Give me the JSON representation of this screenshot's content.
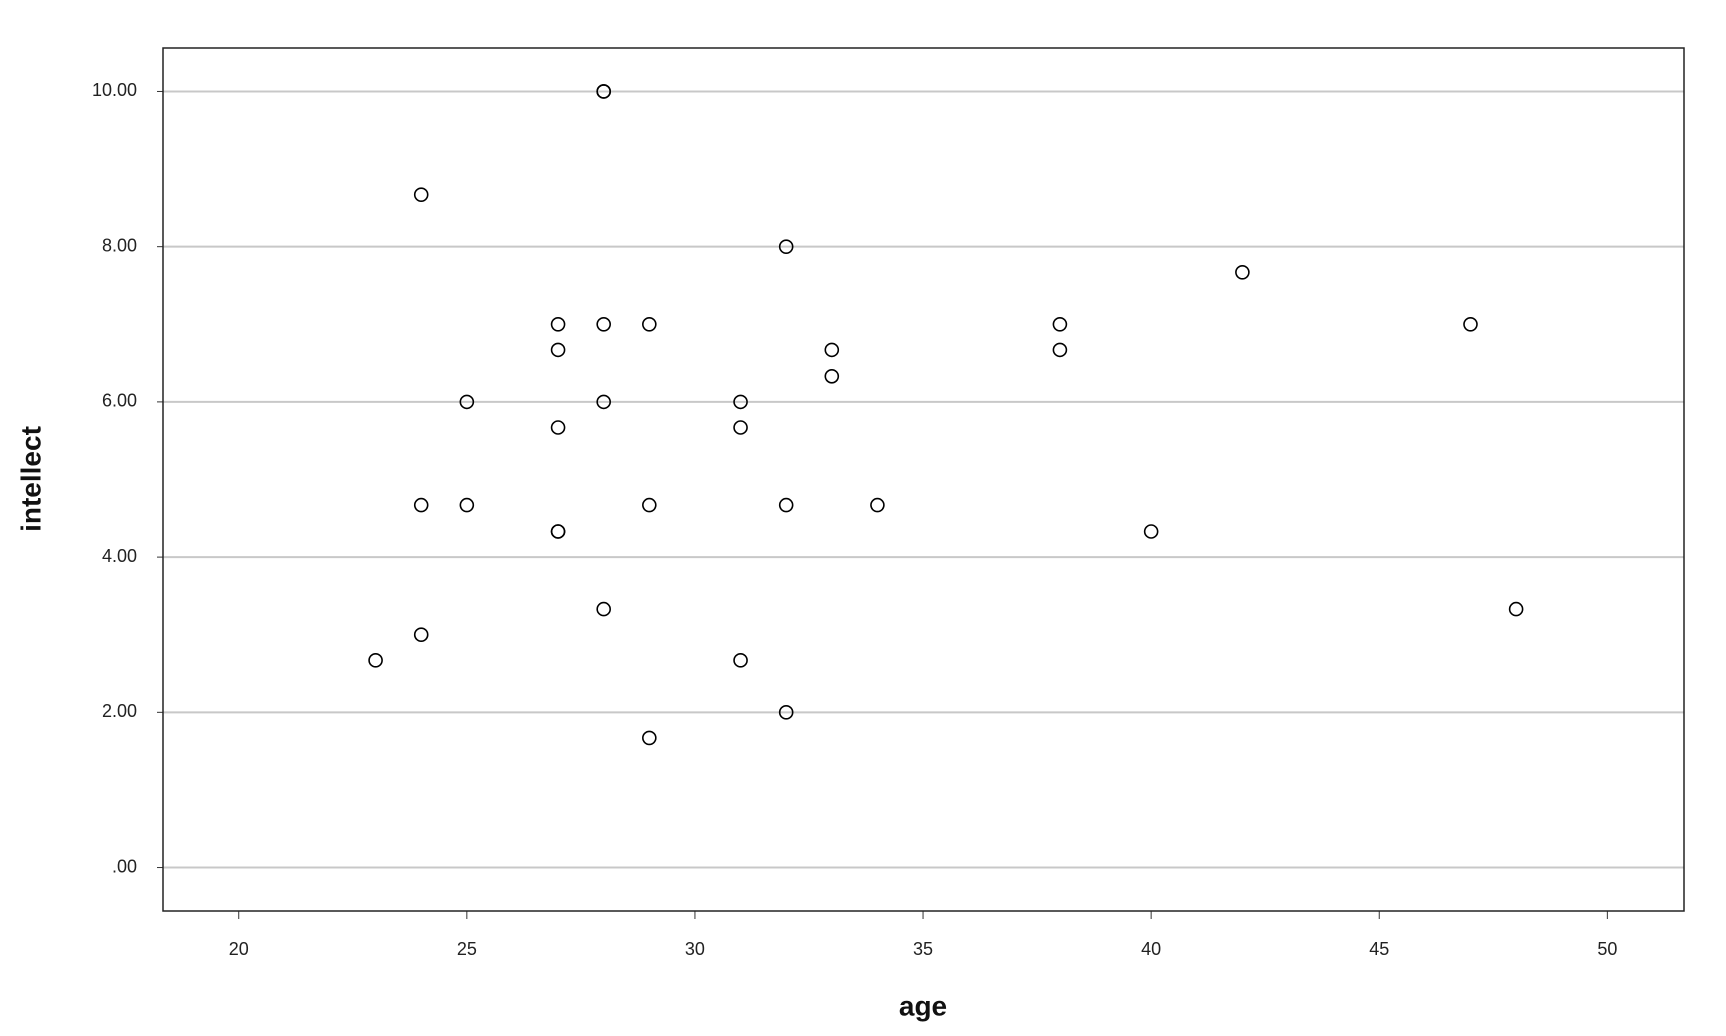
{
  "chart_data": {
    "type": "scatter",
    "x_label": "age",
    "y_label": "intellect",
    "x": [
      23,
      24,
      24,
      24,
      25,
      25,
      27,
      27,
      27,
      27,
      27,
      28,
      28,
      28,
      28,
      28,
      29,
      29,
      29,
      31,
      31,
      31,
      32,
      32,
      32,
      33,
      33,
      34,
      38,
      38,
      40,
      42,
      47,
      48
    ],
    "values": [
      2.67,
      8.67,
      4.67,
      3.0,
      6.0,
      4.67,
      7.0,
      6.67,
      5.67,
      4.33,
      4.33,
      10.0,
      10.0,
      7.0,
      6.0,
      3.33,
      7.0,
      4.67,
      1.67,
      6.0,
      5.67,
      2.67,
      8.0,
      4.67,
      2.0,
      6.67,
      6.33,
      4.67,
      7.0,
      6.67,
      4.33,
      7.67,
      7.0,
      3.33
    ],
    "color": "#000000",
    "xlim": [
      18.34,
      51.68
    ],
    "ylim": [
      -0.56,
      10.56
    ],
    "xticks": [
      20,
      25,
      30,
      35,
      40,
      45,
      50
    ],
    "yticks": [
      {
        "value": 0,
        "label": ".00"
      },
      {
        "value": 2,
        "label": "2.00"
      },
      {
        "value": 4,
        "label": "4.00"
      },
      {
        "value": 6,
        "label": "6.00"
      },
      {
        "value": 8,
        "label": "8.00"
      },
      {
        "value": 10,
        "label": "10.00"
      }
    ],
    "grid": true
  }
}
